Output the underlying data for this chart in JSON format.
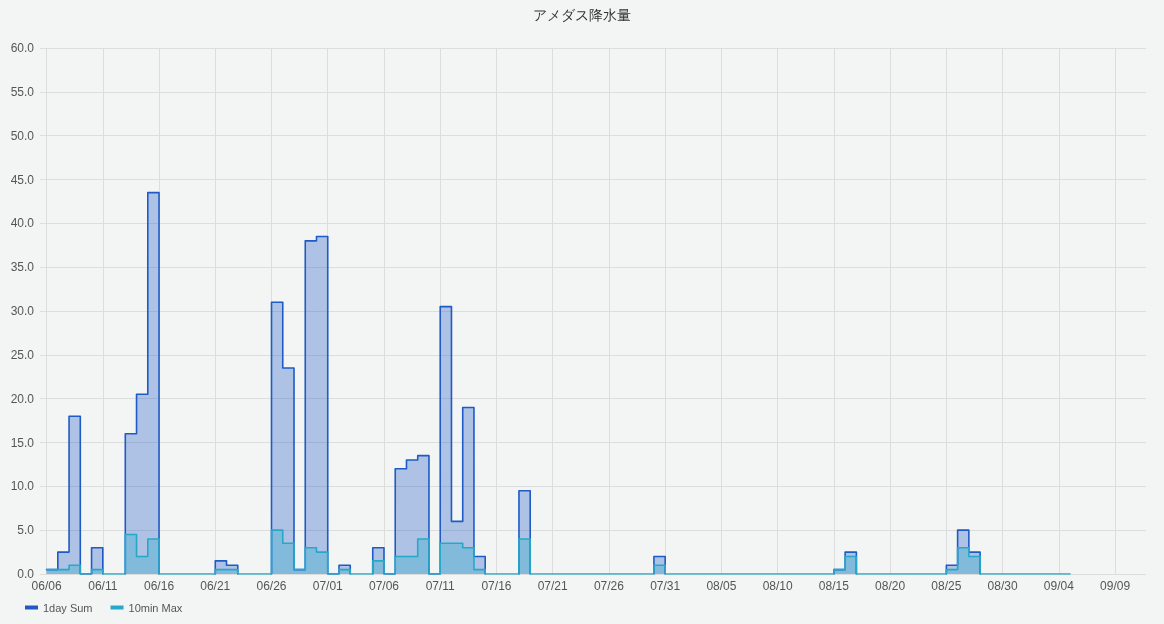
{
  "chart_data": {
    "type": "step",
    "title": "アメダス降水量",
    "x": [
      "--06-06",
      "--06-07",
      "--06-08",
      "--06-09",
      "--06-10",
      "--06-11",
      "--06-12",
      "--06-13",
      "--06-14",
      "--06-15",
      "--06-16",
      "--06-17",
      "--06-18",
      "--06-19",
      "--06-20",
      "--06-21",
      "--06-22",
      "--06-23",
      "--06-24",
      "--06-25",
      "--06-26",
      "--06-27",
      "--06-28",
      "--06-29",
      "--06-30",
      "--07-01",
      "--07-02",
      "--07-03",
      "--07-04",
      "--07-05",
      "--07-06",
      "--07-07",
      "--07-08",
      "--07-09",
      "--07-10",
      "--07-11",
      "--07-12",
      "--07-13",
      "--07-14",
      "--07-15",
      "--07-16",
      "--07-17",
      "--07-18",
      "--07-19",
      "--07-20",
      "--07-21",
      "--07-22",
      "--07-23",
      "--07-24",
      "--07-25",
      "--07-26",
      "--07-27",
      "--07-28",
      "--07-29",
      "--07-30",
      "--07-31",
      "--08-01",
      "--08-02",
      "--08-03",
      "--08-04",
      "--08-05",
      "--08-06",
      "--08-07",
      "--08-08",
      "--08-09",
      "--08-10",
      "--08-11",
      "--08-12",
      "--08-13",
      "--08-14",
      "--08-15",
      "--08-16",
      "--08-17",
      "--08-18",
      "--08-19",
      "--08-20",
      "--08-21",
      "--08-22",
      "--08-23",
      "--08-24",
      "--08-25",
      "--08-26",
      "--08-27",
      "--08-28",
      "--08-29",
      "--08-30",
      "--08-31",
      "--09-01",
      "--09-02",
      "--09-03",
      "--09-04",
      "--09-05"
    ],
    "series": [
      {
        "name": "1day Sum",
        "color": "#1e5bc6",
        "values": [
          0.5,
          2.5,
          18.0,
          0,
          3.0,
          0,
          null,
          16.0,
          20.5,
          43.5,
          0,
          null,
          null,
          null,
          null,
          1.5,
          1.0,
          0,
          null,
          null,
          31.0,
          23.5,
          0.5,
          38.0,
          38.5,
          0,
          1.0,
          0,
          null,
          3.0,
          0,
          12.0,
          13.0,
          13.5,
          0,
          30.5,
          6.0,
          19.0,
          2.0,
          0,
          null,
          null,
          9.5,
          0,
          null,
          null,
          null,
          null,
          null,
          null,
          null,
          null,
          null,
          null,
          2.0,
          0,
          null,
          null,
          null,
          null,
          null,
          null,
          null,
          null,
          null,
          null,
          null,
          null,
          null,
          null,
          0.5,
          2.5,
          0,
          null,
          null,
          null,
          null,
          null,
          null,
          null,
          1.0,
          5.0,
          2.5,
          0,
          null,
          null,
          null,
          null,
          null,
          null,
          null,
          null
        ]
      },
      {
        "name": "10min Max",
        "color": "#26a9c9",
        "values": [
          0.5,
          0.5,
          1.0,
          0,
          0.5,
          0,
          0,
          4.5,
          2.0,
          4.0,
          0,
          0,
          0,
          0,
          0,
          0.5,
          0.5,
          0,
          0,
          0,
          5.0,
          3.5,
          0.5,
          3.0,
          2.5,
          0,
          0.5,
          0,
          0,
          1.5,
          0,
          2.0,
          2.0,
          4.0,
          0,
          3.5,
          3.5,
          3.0,
          0.5,
          0,
          0,
          0,
          4.0,
          0,
          0,
          0,
          0,
          0,
          0,
          0,
          0,
          0,
          0,
          0,
          1.0,
          0,
          0,
          0,
          0,
          0,
          0,
          0,
          0,
          0,
          0,
          0,
          0,
          0,
          0,
          0,
          0.5,
          2.0,
          0,
          0,
          0,
          0,
          0,
          0,
          0,
          0,
          0.5,
          3.0,
          2.0,
          0,
          0,
          0,
          0,
          0,
          0,
          0,
          0,
          0
        ]
      }
    ],
    "xlim": [
      "--06-05T10:00",
      "--09-11T18:00"
    ],
    "xticks": [
      {
        "value": "--06-06",
        "label": "06/06"
      },
      {
        "value": "--06-11",
        "label": "06/11"
      },
      {
        "value": "--06-16",
        "label": "06/16"
      },
      {
        "value": "--06-21",
        "label": "06/21"
      },
      {
        "value": "--06-26",
        "label": "06/26"
      },
      {
        "value": "--07-01",
        "label": "07/01"
      },
      {
        "value": "--07-06",
        "label": "07/06"
      },
      {
        "value": "--07-11",
        "label": "07/11"
      },
      {
        "value": "--07-16",
        "label": "07/16"
      },
      {
        "value": "--07-21",
        "label": "07/21"
      },
      {
        "value": "--07-26",
        "label": "07/26"
      },
      {
        "value": "--07-31",
        "label": "07/31"
      },
      {
        "value": "--08-05",
        "label": "08/05"
      },
      {
        "value": "--08-10",
        "label": "08/10"
      },
      {
        "value": "--08-15",
        "label": "08/15"
      },
      {
        "value": "--08-20",
        "label": "08/20"
      },
      {
        "value": "--08-25",
        "label": "08/25"
      },
      {
        "value": "--08-30",
        "label": "08/30"
      },
      {
        "value": "--09-04",
        "label": "09/04"
      },
      {
        "value": "--09-09",
        "label": "09/09"
      }
    ],
    "ylim": [
      0,
      60
    ],
    "yticks": [
      {
        "value": 0,
        "label": "0.0"
      },
      {
        "value": 5,
        "label": "5.0"
      },
      {
        "value": 10,
        "label": "10.0"
      },
      {
        "value": 15,
        "label": "15.0"
      },
      {
        "value": 20,
        "label": "20.0"
      },
      {
        "value": 25,
        "label": "25.0"
      },
      {
        "value": 30,
        "label": "30.0"
      },
      {
        "value": 35,
        "label": "35.0"
      },
      {
        "value": 40,
        "label": "40.0"
      },
      {
        "value": 45,
        "label": "45.0"
      },
      {
        "value": 50,
        "label": "50.0"
      },
      {
        "value": 55,
        "label": "55.0"
      },
      {
        "value": 60,
        "label": "60.0"
      }
    ],
    "grid": true,
    "legend": "bottom left",
    "marker": "none"
  }
}
